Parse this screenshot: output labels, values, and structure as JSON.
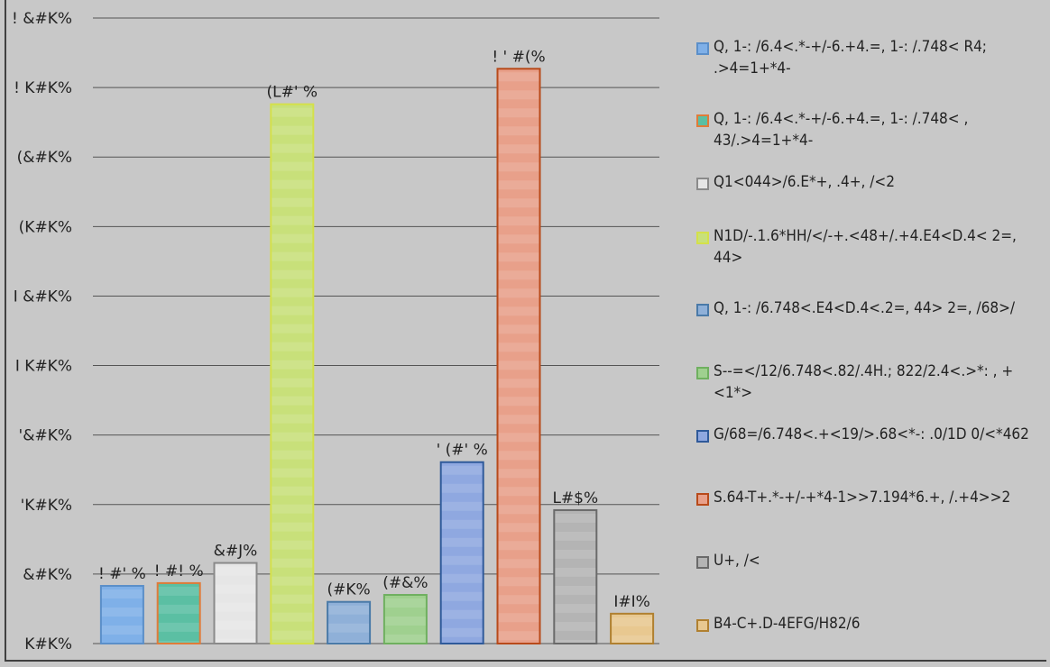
{
  "chart_data": {
    "type": "bar",
    "title": "",
    "xlabel": "",
    "ylabel": "",
    "ylim": [
      0,
      9
    ],
    "grid": true,
    "legend_position": "right",
    "y_ticks": [
      {
        "value": 0,
        "label": "K#K%"
      },
      {
        "value": 1,
        "label": "&#K%"
      },
      {
        "value": 2,
        "label": "'K#K%"
      },
      {
        "value": 3,
        "label": "'&#K%"
      },
      {
        "value": 4,
        "label": "I K#K%"
      },
      {
        "value": 5,
        "label": "I &#K%"
      },
      {
        "value": 6,
        "label": "(K#K%"
      },
      {
        "value": 7,
        "label": "(&#K%"
      },
      {
        "value": 8,
        "label": "! K#K%"
      },
      {
        "value": 9,
        "label": "! &#K%"
      }
    ],
    "series": [
      {
        "name": "Q, 1-: /6.4<.*-+/-6.+4.=, 1-: /.748< R4; .>4=1+*4-",
        "value": 0.83,
        "label": "! #' %",
        "color": "#7fb0e8",
        "border": "#5b8fc9"
      },
      {
        "name": "Q, 1-: /6.4<.*-+/-6.+4.=, 1-: /.748< , 43/.>4=1+*4-",
        "value": 0.87,
        "label": "! #! %",
        "color": "#5bbfa3",
        "border": "#e07b39"
      },
      {
        "name": "Q1<044>/6.E*+, .4+, /<2",
        "value": 1.16,
        "label": "&#J%",
        "color": "#e6e6e6",
        "border": "#8a8a8a"
      },
      {
        "name": "N1D/-.1.6*HH/</-+.<48+/.+4.E4<D.4< 2=, 44>",
        "value": 7.76,
        "label": "(L#' %",
        "color": "#c8e07a",
        "border": "#d4e04a"
      },
      {
        "name": "Q, 1-: /6.748<.E4<D.4<.2=, 44> 2=, /68>/",
        "value": 0.6,
        "label": "(#K%",
        "color": "#8fb0d8",
        "border": "#4a7aa8"
      },
      {
        "name": "S--=</12/6.748<.82/.4H.; 822/2.4<.>*: , + <1*>",
        "value": 0.7,
        "label": "(#&%",
        "color": "#9fd08f",
        "border": "#6fb05f"
      },
      {
        "name": "G/68=/6.748<.+<19/>.68<*-: .0/1D 0/<*462",
        "value": 2.61,
        "label": "' (#' %",
        "color": "#8fa8e0",
        "border": "#2f5a9a"
      },
      {
        "name": "S.64-T+.*-+/-+*4-1>>7.194*6.+, /.+4>>2",
        "value": 8.27,
        "label": "! ' #(%",
        "color": "#e8a08a",
        "border": "#b84a1a"
      },
      {
        "name": "U+, /<",
        "value": 1.92,
        "label": "L#$%",
        "color": "#b4b4b4",
        "border": "#6a6a6a"
      },
      {
        "name": "B4-C+.D-4EFG/H82/6",
        "value": 0.43,
        "label": "I#I%",
        "color": "#e8c890",
        "border": "#b08030"
      }
    ]
  }
}
